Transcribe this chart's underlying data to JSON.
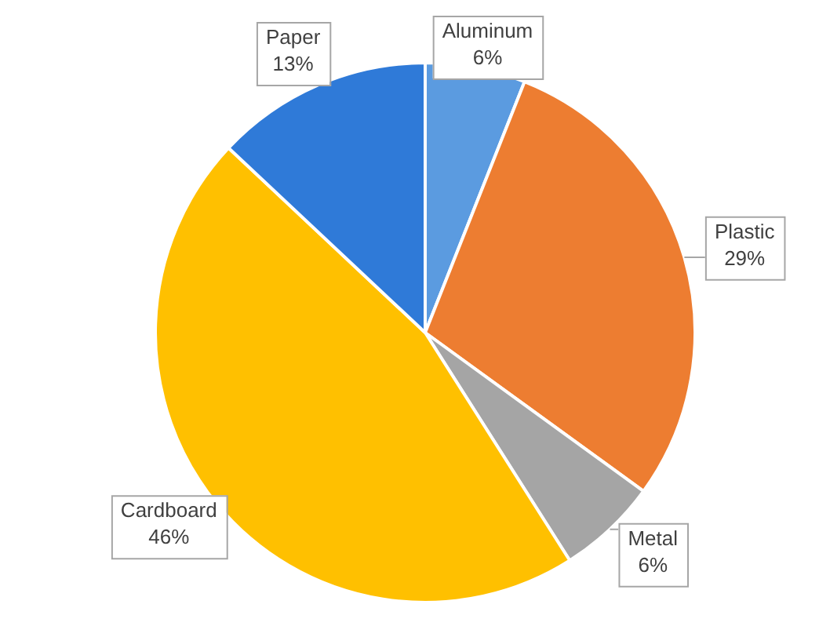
{
  "chart_data": {
    "type": "pie",
    "categories": [
      "Aluminum",
      "Plastic",
      "Metal",
      "Cardboard",
      "Paper"
    ],
    "values": [
      6,
      29,
      6,
      46,
      13
    ],
    "value_labels": [
      "6%",
      "29%",
      "6%",
      "46%",
      "13%"
    ],
    "colors": [
      "#5b9be0",
      "#ed7d31",
      "#a5a5a5",
      "#ffc000",
      "#2f7ad8"
    ],
    "legend": false
  }
}
